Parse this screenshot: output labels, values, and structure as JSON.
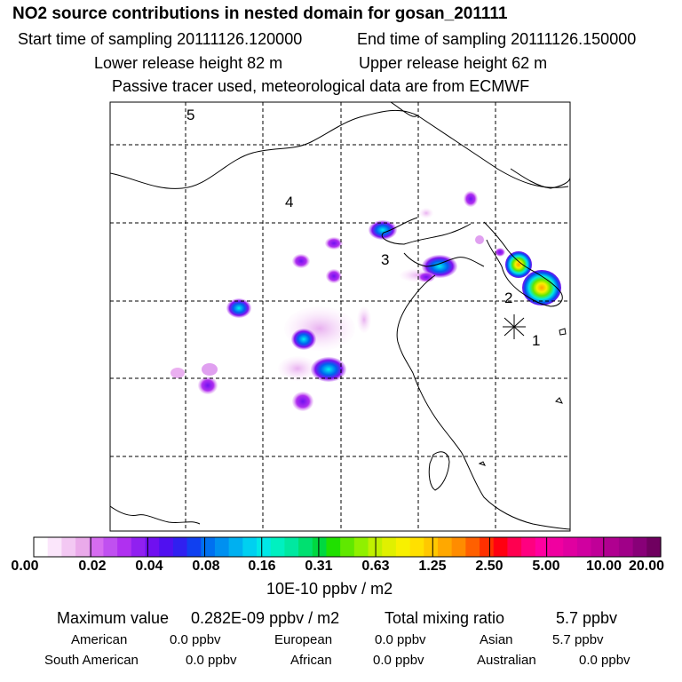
{
  "header": {
    "title": "NO2 source contributions in nested domain for gosan_201111",
    "start_time": "Start time of sampling 20111126.120000",
    "end_time": "End time of sampling 20111126.150000",
    "lower_release": "Lower release height   82 m",
    "upper_release": "Upper release height   62 m",
    "info": "Passive tracer used, meteorological data are from ECMWF"
  },
  "map": {
    "region_labels": [
      "1",
      "2",
      "3",
      "4",
      "5"
    ],
    "receptor_marker": "asterisk-marker"
  },
  "colorbar": {
    "ticks": [
      "0.00",
      "0.02",
      "0.04",
      "0.08",
      "0.16",
      "0.31",
      "0.63",
      "1.25",
      "2.50",
      "5.00",
      "10.00",
      "20.00"
    ],
    "colors": [
      "#ffffff",
      "#fbe6fb",
      "#f3c8f3",
      "#eaaaea",
      "#d66cf0",
      "#c050f0",
      "#b030f0",
      "#9020f0",
      "#7010f0",
      "#5010f0",
      "#3020f0",
      "#1040f0",
      "#0070f0",
      "#0090f0",
      "#00b0f0",
      "#00d0f0",
      "#00e8e8",
      "#00f0c0",
      "#00e8a0",
      "#00e070",
      "#00d840",
      "#20e000",
      "#60e800",
      "#90f000",
      "#c0f000",
      "#e0f000",
      "#f8f000",
      "#ffe000",
      "#ffc800",
      "#ffa800",
      "#ff8c00",
      "#ff6000",
      "#ff3000",
      "#ff0010",
      "#ff0050",
      "#ff0080",
      "#ff00a0",
      "#f000a0",
      "#e000a0",
      "#d000a0",
      "#c00098",
      "#b00090",
      "#a00088",
      "#880078",
      "#700060"
    ],
    "units": "10E-10 ppbv / m2"
  },
  "stats": {
    "max_label": "Maximum value",
    "max_value": "0.282E-09 ppbv / m2",
    "total_label": "Total mixing ratio",
    "total_value": "5.7 ppbv"
  },
  "regions": [
    {
      "name": "American",
      "value": "0.0 ppbv"
    },
    {
      "name": "European",
      "value": "0.0 ppbv"
    },
    {
      "name": "Asian",
      "value": "5.7 ppbv"
    },
    {
      "name": "South American",
      "value": "0.0 ppbv"
    },
    {
      "name": "African",
      "value": "0.0 ppbv"
    },
    {
      "name": "Australian",
      "value": "0.0 ppbv"
    }
  ]
}
